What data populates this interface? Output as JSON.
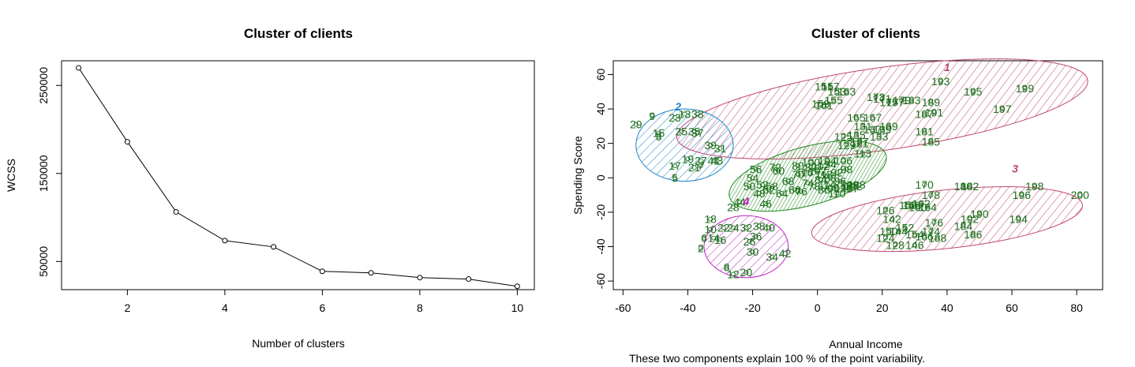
{
  "chart_data": [
    {
      "type": "line",
      "title": "Cluster of clients",
      "xlabel": "Number of clusters",
      "ylabel": "WCSS",
      "x": [
        1,
        2,
        3,
        4,
        5,
        6,
        7,
        8,
        9,
        10
      ],
      "y": [
        269981,
        185917,
        106348,
        73679,
        66630,
        38858,
        37018,
        31710,
        30057,
        21830
      ],
      "xlim": [
        0.65,
        10.35
      ],
      "ylim": [
        18000,
        278000
      ],
      "xticks": [
        "2",
        "4",
        "6",
        "8",
        "10"
      ],
      "yticks": [
        "50000",
        "150000",
        "250000"
      ],
      "grid": false
    },
    {
      "type": "scatter",
      "title": "Cluster of clients",
      "xlabel": "Annual Income",
      "ylabel": "Spending Score",
      "caption": "These two components explain 100 % of the point variability.",
      "xlim": [
        -63,
        88
      ],
      "ylim": [
        -65,
        68
      ],
      "xticks": [
        "-60",
        "-40",
        "-20",
        "0",
        "20",
        "40",
        "60",
        "80"
      ],
      "yticks": [
        "-60",
        "-40",
        "-20",
        "0",
        "20",
        "40",
        "60"
      ],
      "grid": false,
      "clusters": [
        {
          "label": "1",
          "color": "#c0466d",
          "center": [
            20,
            40
          ],
          "radii": [
            64,
            24
          ],
          "angle": 8,
          "label_pos": [
            40,
            62
          ],
          "points": [
            {
              "n": "151",
              "x": 2,
              "y": 53
            },
            {
              "n": "153",
              "x": 6,
              "y": 50
            },
            {
              "n": "157",
              "x": 4,
              "y": 53
            },
            {
              "n": "155",
              "x": 5,
              "y": 45
            },
            {
              "n": "159",
              "x": 1,
              "y": 43
            },
            {
              "n": "161",
              "x": 2,
              "y": 42
            },
            {
              "n": "163",
              "x": 9,
              "y": 50
            },
            {
              "n": "165",
              "x": 12,
              "y": 35
            },
            {
              "n": "167",
              "x": 17,
              "y": 35
            },
            {
              "n": "169",
              "x": 22,
              "y": 30
            },
            {
              "n": "171",
              "x": 20,
              "y": 46
            },
            {
              "n": "173",
              "x": 18,
              "y": 47
            },
            {
              "n": "175",
              "x": 22,
              "y": 44
            },
            {
              "n": "177",
              "x": 24,
              "y": 44
            },
            {
              "n": "179",
              "x": 26,
              "y": 45
            },
            {
              "n": "181",
              "x": 33,
              "y": 27
            },
            {
              "n": "183",
              "x": 29,
              "y": 45
            },
            {
              "n": "185",
              "x": 35,
              "y": 21
            },
            {
              "n": "187",
              "x": 33,
              "y": 37
            },
            {
              "n": "189",
              "x": 35,
              "y": 44
            },
            {
              "n": "191",
              "x": 36,
              "y": 38
            },
            {
              "n": "193",
              "x": 38,
              "y": 56
            },
            {
              "n": "195",
              "x": 48,
              "y": 50
            },
            {
              "n": "197",
              "x": 57,
              "y": 40
            },
            {
              "n": "199",
              "x": 64,
              "y": 52
            },
            {
              "n": "131",
              "x": 14,
              "y": 30
            },
            {
              "n": "133",
              "x": 19,
              "y": 24
            },
            {
              "n": "135",
              "x": 12,
              "y": 25
            },
            {
              "n": "137",
              "x": 17,
              "y": 28
            },
            {
              "n": "139",
              "x": 20,
              "y": 28
            }
          ]
        },
        {
          "label": "2",
          "color": "#1d85c5",
          "center": [
            -41,
            19
          ],
          "radii": [
            15,
            21
          ],
          "angle": 0,
          "label_pos": [
            -43,
            39
          ],
          "points": [
            {
              "n": "9",
              "x": -51,
              "y": 36
            },
            {
              "n": "23",
              "x": -44,
              "y": 35
            },
            {
              "n": "33",
              "x": -37,
              "y": 37
            },
            {
              "n": "13",
              "x": -41,
              "y": 37
            },
            {
              "n": "25",
              "x": -42,
              "y": 27
            },
            {
              "n": "35",
              "x": -38,
              "y": 27
            },
            {
              "n": "37",
              "x": -37,
              "y": 26
            },
            {
              "n": "15",
              "x": -49,
              "y": 26
            },
            {
              "n": "29",
              "x": -56,
              "y": 31
            },
            {
              "n": "3",
              "x": -49,
              "y": 24
            },
            {
              "n": "19",
              "x": -40,
              "y": 11
            },
            {
              "n": "21",
              "x": -38,
              "y": 6
            },
            {
              "n": "27",
              "x": -36,
              "y": 10
            },
            {
              "n": "31",
              "x": -30,
              "y": 17
            },
            {
              "n": "39",
              "x": -33,
              "y": 19
            },
            {
              "n": "41",
              "x": -32,
              "y": 10
            },
            {
              "n": "43",
              "x": -31,
              "y": 10
            },
            {
              "n": "5",
              "x": -44,
              "y": 0
            },
            {
              "n": "17",
              "x": -44,
              "y": 7
            },
            {
              "n": "7",
              "x": -36,
              "y": 7
            }
          ]
        },
        {
          "label": "3",
          "color": "#c0466d",
          "center": [
            40,
            -24
          ],
          "radii": [
            42,
            17
          ],
          "angle": 6,
          "label_pos": [
            61,
            3
          ],
          "points": [
            {
              "n": "170",
              "x": 33,
              "y": -4
            },
            {
              "n": "178",
              "x": 35,
              "y": -10
            },
            {
              "n": "180",
              "x": 45,
              "y": -5
            },
            {
              "n": "182",
              "x": 47,
              "y": -5
            },
            {
              "n": "196",
              "x": 63,
              "y": -10
            },
            {
              "n": "198",
              "x": 67,
              "y": -5
            },
            {
              "n": "200",
              "x": 81,
              "y": -10
            },
            {
              "n": "166",
              "x": 29,
              "y": -16
            },
            {
              "n": "162",
              "x": 32,
              "y": -15
            },
            {
              "n": "176",
              "x": 36,
              "y": -26
            },
            {
              "n": "174",
              "x": 35,
              "y": -31
            },
            {
              "n": "190",
              "x": 50,
              "y": -21
            },
            {
              "n": "192",
              "x": 47,
              "y": -24
            },
            {
              "n": "184",
              "x": 45,
              "y": -28
            },
            {
              "n": "194",
              "x": 62,
              "y": -24
            },
            {
              "n": "186",
              "x": 48,
              "y": -33
            },
            {
              "n": "188",
              "x": 37,
              "y": -35
            },
            {
              "n": "146",
              "x": 30,
              "y": -39
            },
            {
              "n": "128",
              "x": 24,
              "y": -39
            },
            {
              "n": "124",
              "x": 21,
              "y": -35
            },
            {
              "n": "126",
              "x": 21,
              "y": -19
            },
            {
              "n": "142",
              "x": 23,
              "y": -24
            },
            {
              "n": "144",
              "x": 25,
              "y": -31
            },
            {
              "n": "150",
              "x": 22,
              "y": -31
            },
            {
              "n": "152",
              "x": 27,
              "y": -29
            },
            {
              "n": "154",
              "x": 30,
              "y": -33
            },
            {
              "n": "156",
              "x": 33,
              "y": -34
            },
            {
              "n": "158",
              "x": 28,
              "y": -16
            },
            {
              "n": "160",
              "x": 31,
              "y": -17
            },
            {
              "n": "164",
              "x": 34,
              "y": -17
            }
          ]
        },
        {
          "label": "4",
          "color": "#bb20c0",
          "center": [
            -22,
            -40
          ],
          "radii": [
            13,
            18
          ],
          "angle": 0,
          "label_pos": [
            -22,
            -16
          ],
          "points": [
            {
              "n": "28",
              "x": -26,
              "y": -17
            },
            {
              "n": "18",
              "x": -33,
              "y": -24
            },
            {
              "n": "22",
              "x": -29,
              "y": -29
            },
            {
              "n": "24",
              "x": -26,
              "y": -29
            },
            {
              "n": "32",
              "x": -22,
              "y": -29
            },
            {
              "n": "38",
              "x": -18,
              "y": -28
            },
            {
              "n": "40",
              "x": -15,
              "y": -29
            },
            {
              "n": "10",
              "x": -33,
              "y": -30
            },
            {
              "n": "14",
              "x": -32,
              "y": -35
            },
            {
              "n": "16",
              "x": -30,
              "y": -36
            },
            {
              "n": "6",
              "x": -35,
              "y": -35
            },
            {
              "n": "36",
              "x": -19,
              "y": -34
            },
            {
              "n": "26",
              "x": -21,
              "y": -37
            },
            {
              "n": "30",
              "x": -20,
              "y": -43
            },
            {
              "n": "34",
              "x": -14,
              "y": -46
            },
            {
              "n": "42",
              "x": -10,
              "y": -44
            },
            {
              "n": "8",
              "x": -28,
              "y": -52
            },
            {
              "n": "12",
              "x": -26,
              "y": -56
            },
            {
              "n": "20",
              "x": -22,
              "y": -55
            },
            {
              "n": "2",
              "x": -36,
              "y": -41
            }
          ]
        },
        {
          "label": "5",
          "color": "#1a8a1a",
          "center": [
            -3,
            1
          ],
          "radii": [
            25,
            17
          ],
          "angle": 15,
          "label_pos": [
            -3,
            1
          ],
          "points": [
            {
              "n": "44",
              "x": -24,
              "y": -14
            },
            {
              "n": "46",
              "x": -16,
              "y": -15
            },
            {
              "n": "48",
              "x": -18,
              "y": -9
            },
            {
              "n": "50",
              "x": -21,
              "y": -5
            },
            {
              "n": "52",
              "x": -17,
              "y": -4
            },
            {
              "n": "54",
              "x": -20,
              "y": 0
            },
            {
              "n": "56",
              "x": -19,
              "y": 5
            },
            {
              "n": "58",
              "x": -14,
              "y": -5
            },
            {
              "n": "60",
              "x": -12,
              "y": 4
            },
            {
              "n": "62",
              "x": -15,
              "y": -7
            },
            {
              "n": "64",
              "x": -11,
              "y": -9
            },
            {
              "n": "66",
              "x": -7,
              "y": -7
            },
            {
              "n": "68",
              "x": -9,
              "y": -2
            },
            {
              "n": "70",
              "x": -6,
              "y": 2
            },
            {
              "n": "72",
              "x": -13,
              "y": 6
            },
            {
              "n": "74",
              "x": -3,
              "y": -3
            },
            {
              "n": "76",
              "x": -5,
              "y": -8
            },
            {
              "n": "78",
              "x": -1,
              "y": -5
            },
            {
              "n": "80",
              "x": -6,
              "y": 7
            },
            {
              "n": "82",
              "x": -2,
              "y": 6
            },
            {
              "n": "84",
              "x": 1,
              "y": -1
            },
            {
              "n": "86",
              "x": 2,
              "y": -7
            },
            {
              "n": "88",
              "x": 4,
              "y": 0
            },
            {
              "n": "90",
              "x": 5,
              "y": -6
            },
            {
              "n": "92",
              "x": 6,
              "y": 3
            },
            {
              "n": "94",
              "x": 4,
              "y": 8
            },
            {
              "n": "96",
              "x": 7,
              "y": -2
            },
            {
              "n": "98",
              "x": 9,
              "y": 5
            },
            {
              "n": "100",
              "x": -2,
              "y": 9
            },
            {
              "n": "102",
              "x": 0,
              "y": 4
            },
            {
              "n": "104",
              "x": 3,
              "y": 10
            },
            {
              "n": "106",
              "x": 8,
              "y": 10
            },
            {
              "n": "108",
              "x": 10,
              "y": -4
            },
            {
              "n": "110",
              "x": 6,
              "y": -9
            },
            {
              "n": "112",
              "x": 1,
              "y": 7
            },
            {
              "n": "114",
              "x": 3,
              "y": -4
            },
            {
              "n": "116",
              "x": -4,
              "y": 3
            },
            {
              "n": "118",
              "x": 2,
              "y": 2
            },
            {
              "n": "120",
              "x": 8,
              "y": -6
            },
            {
              "n": "122",
              "x": 11,
              "y": -5
            },
            {
              "n": "113",
              "x": 14,
              "y": 14
            },
            {
              "n": "117",
              "x": 10,
              "y": -6
            },
            {
              "n": "123",
              "x": 12,
              "y": -4
            },
            {
              "n": "125",
              "x": 8,
              "y": 24
            },
            {
              "n": "127",
              "x": 13,
              "y": 21
            },
            {
              "n": "129",
              "x": 9,
              "y": 19
            },
            {
              "n": "121",
              "x": 13,
              "y": 20
            }
          ]
        }
      ]
    }
  ]
}
